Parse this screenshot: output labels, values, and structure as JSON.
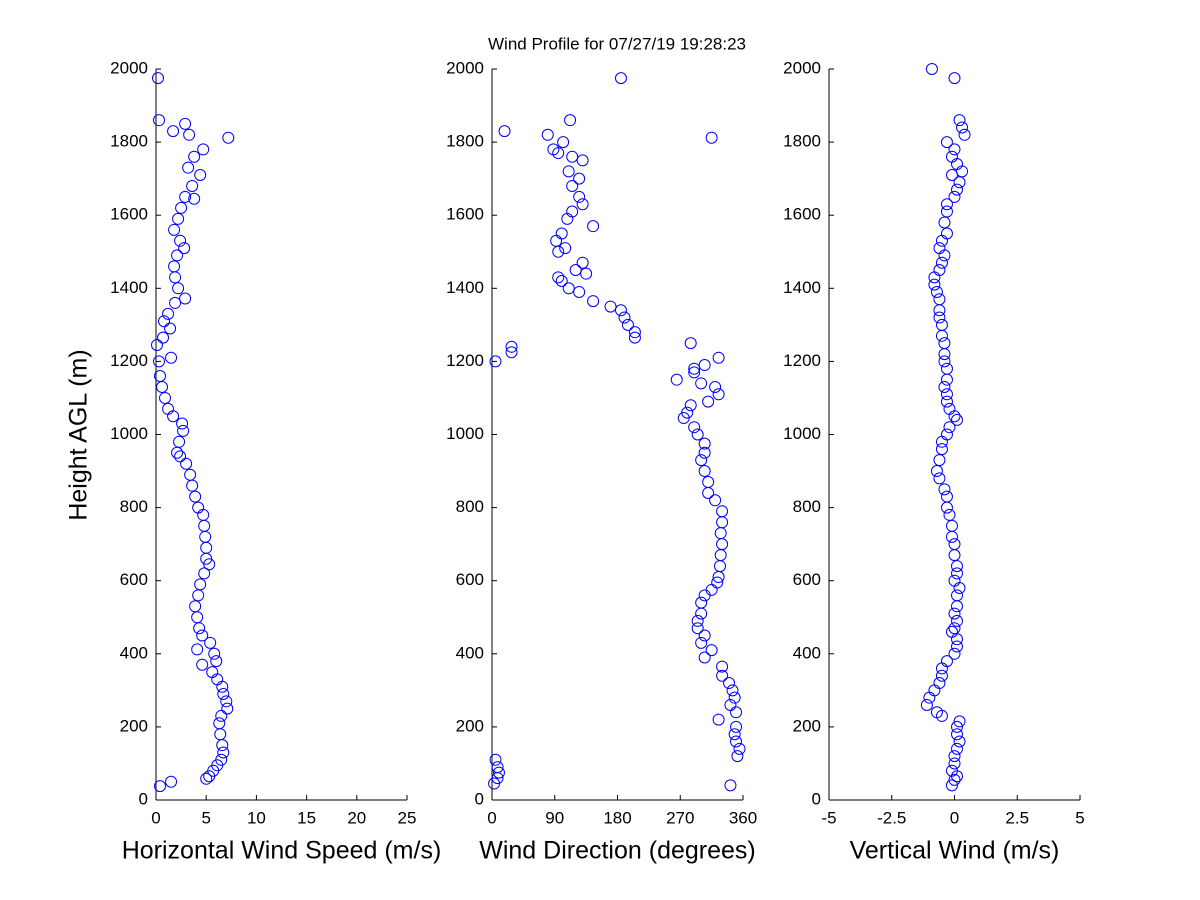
{
  "chart_data": [
    {
      "type": "scatter",
      "title": "Wind Profile for  07/27/19 19:28:23",
      "xlabel": "Horizontal Wind Speed (m/s)",
      "ylabel": "Height AGL (m)",
      "color": "#0000ff",
      "xlim": [
        0,
        25
      ],
      "xticks": [
        0,
        5,
        10,
        15,
        20,
        25
      ],
      "ylim": [
        0,
        2000
      ],
      "yticks": [
        0,
        200,
        400,
        600,
        800,
        1000,
        1200,
        1400,
        1600,
        1800,
        2000
      ],
      "x": [
        0.2,
        0.3,
        1.7,
        7.2,
        2.9,
        4.7,
        3.3,
        3.8,
        3.2,
        4.4,
        3.6,
        2.9,
        3.8,
        2.5,
        2.2,
        1.8,
        2.4,
        2.8,
        2.1,
        1.8,
        1.9,
        2.2,
        2.9,
        1.9,
        1.2,
        0.8,
        1.4,
        0.7,
        1.5,
        0.1,
        0.3,
        0.4,
        0.6,
        0.9,
        1.2,
        1.7,
        2.6,
        2.7,
        2.3,
        2.1,
        2.4,
        3.0,
        3.4,
        3.6,
        3.9,
        4.2,
        4.7,
        4.8,
        4.9,
        5.0,
        5.0,
        5.3,
        4.8,
        4.4,
        4.2,
        3.9,
        4.1,
        4.3,
        4.6,
        5.4,
        4.1,
        5.8,
        6.0,
        4.6,
        5.6,
        6.1,
        6.6,
        6.7,
        7.0,
        7.1,
        6.5,
        6.3,
        6.4,
        6.6,
        6.7,
        6.5,
        6.1,
        5.7,
        5.3,
        5.0,
        1.5,
        0.4
      ],
      "y": [
        1975,
        1860,
        1830,
        1812,
        1850,
        1780,
        1820,
        1760,
        1730,
        1710,
        1680,
        1650,
        1645,
        1620,
        1590,
        1560,
        1530,
        1510,
        1490,
        1460,
        1430,
        1400,
        1372,
        1360,
        1330,
        1310,
        1290,
        1265,
        1210,
        1245,
        1200,
        1160,
        1130,
        1100,
        1070,
        1050,
        1030,
        1010,
        980,
        950,
        940,
        920,
        890,
        860,
        830,
        800,
        780,
        750,
        720,
        690,
        660,
        645,
        620,
        590,
        560,
        530,
        500,
        470,
        450,
        430,
        412,
        400,
        380,
        370,
        350,
        330,
        310,
        290,
        270,
        250,
        230,
        210,
        180,
        150,
        130,
        110,
        95,
        80,
        65,
        58,
        50,
        38
      ]
    },
    {
      "type": "scatter",
      "xlabel": "Wind Direction (degrees)",
      "color": "#0000ff",
      "xlim": [
        0,
        360
      ],
      "xticks": [
        0,
        90,
        180,
        270,
        360
      ],
      "ylim": [
        0,
        2000
      ],
      "yticks": [
        0,
        200,
        400,
        600,
        800,
        1000,
        1200,
        1400,
        1600,
        1800,
        2000
      ],
      "x": [
        185,
        18,
        315,
        112,
        80,
        88,
        102,
        95,
        115,
        130,
        110,
        125,
        115,
        125,
        130,
        115,
        108,
        145,
        100,
        92,
        105,
        95,
        130,
        120,
        100,
        95,
        135,
        110,
        125,
        145,
        170,
        185,
        190,
        195,
        205,
        205,
        28,
        28,
        5,
        285,
        325,
        290,
        290,
        305,
        265,
        300,
        320,
        325,
        310,
        285,
        280,
        275,
        290,
        295,
        305,
        305,
        300,
        305,
        310,
        310,
        320,
        330,
        330,
        328,
        330,
        328,
        327,
        325,
        323,
        315,
        305,
        300,
        300,
        295,
        295,
        305,
        300,
        315,
        305,
        330,
        330,
        340,
        345,
        348,
        342,
        350,
        325,
        350,
        348,
        350,
        355,
        352,
        342,
        5,
        8,
        10,
        8,
        3
      ],
      "y": [
        1975,
        1830,
        1812,
        1860,
        1820,
        1780,
        1800,
        1770,
        1760,
        1750,
        1720,
        1700,
        1680,
        1650,
        1630,
        1610,
        1590,
        1570,
        1550,
        1530,
        1510,
        1500,
        1470,
        1450,
        1420,
        1430,
        1440,
        1400,
        1390,
        1365,
        1350,
        1340,
        1320,
        1300,
        1280,
        1265,
        1240,
        1225,
        1200,
        1250,
        1210,
        1180,
        1170,
        1190,
        1150,
        1140,
        1130,
        1110,
        1090,
        1080,
        1060,
        1045,
        1020,
        1000,
        975,
        950,
        930,
        900,
        870,
        840,
        820,
        790,
        760,
        730,
        700,
        670,
        640,
        610,
        595,
        575,
        560,
        540,
        510,
        490,
        470,
        450,
        430,
        410,
        390,
        365,
        340,
        320,
        300,
        280,
        260,
        240,
        220,
        200,
        180,
        160,
        140,
        120,
        40,
        110,
        90,
        75,
        60,
        45
      ]
    },
    {
      "type": "scatter",
      "xlabel": "Vertical Wind (m/s)",
      "color": "#0000ff",
      "xlim": [
        -5,
        5
      ],
      "xticks": [
        -5,
        -2.5,
        0,
        2.5,
        5
      ],
      "ylim": [
        0,
        2000
      ],
      "yticks": [
        0,
        200,
        400,
        600,
        800,
        1000,
        1200,
        1400,
        1600,
        1800,
        2000
      ],
      "x": [
        -0.9,
        0,
        0.2,
        0.3,
        0.4,
        -0.3,
        0,
        -0.1,
        0.1,
        0.3,
        -0.1,
        0.2,
        0.1,
        0,
        -0.3,
        -0.3,
        -0.4,
        -0.3,
        -0.5,
        -0.6,
        -0.4,
        -0.5,
        -0.6,
        -0.8,
        -0.8,
        -0.7,
        -0.6,
        -0.6,
        -0.6,
        -0.5,
        -0.5,
        -0.4,
        -0.4,
        -0.4,
        -0.3,
        -0.3,
        -0.4,
        -0.3,
        -0.3,
        -0.2,
        0,
        0.1,
        -0.2,
        -0.3,
        -0.5,
        -0.5,
        -0.6,
        -0.7,
        -0.6,
        -0.4,
        -0.3,
        -0.3,
        -0.2,
        -0.1,
        -0.1,
        0,
        0,
        0.1,
        0.1,
        0,
        0.2,
        0.1,
        0.1,
        0,
        0.1,
        0,
        -0.1,
        0.1,
        0.1,
        0,
        -0.3,
        -0.5,
        -0.5,
        -0.6,
        -0.8,
        -1.0,
        -1.1,
        -0.7,
        -0.5,
        0.2,
        0.1,
        0.1,
        0.2,
        0.1,
        0,
        0,
        -0.1,
        0.1,
        0,
        -0.1
      ],
      "y": [
        2000,
        1975,
        1860,
        1840,
        1820,
        1800,
        1780,
        1760,
        1740,
        1720,
        1710,
        1690,
        1670,
        1650,
        1630,
        1610,
        1580,
        1550,
        1530,
        1510,
        1490,
        1470,
        1450,
        1430,
        1410,
        1390,
        1370,
        1340,
        1320,
        1300,
        1270,
        1250,
        1220,
        1200,
        1180,
        1150,
        1130,
        1110,
        1090,
        1070,
        1050,
        1040,
        1020,
        1000,
        980,
        960,
        930,
        900,
        880,
        850,
        830,
        800,
        780,
        750,
        720,
        700,
        670,
        640,
        620,
        600,
        580,
        560,
        530,
        510,
        490,
        470,
        460,
        440,
        420,
        400,
        380,
        360,
        340,
        320,
        300,
        280,
        260,
        240,
        230,
        215,
        200,
        180,
        160,
        140,
        120,
        100,
        80,
        65,
        55,
        40
      ]
    }
  ]
}
